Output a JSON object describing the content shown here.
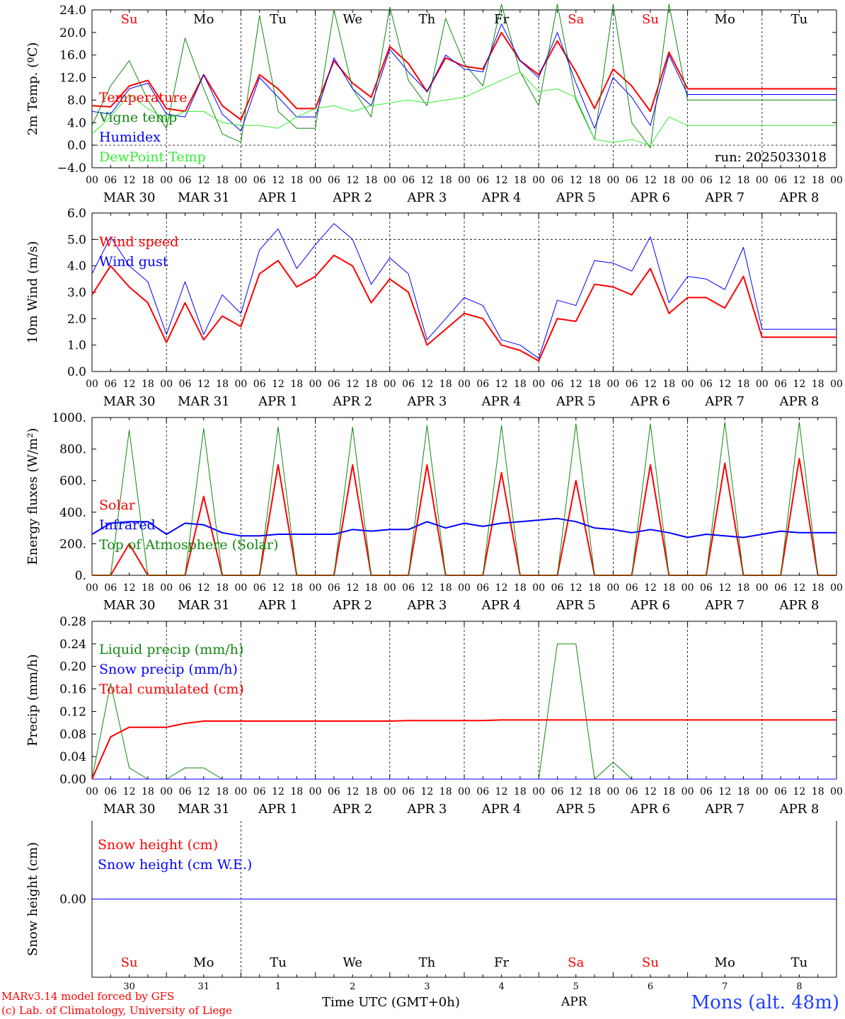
{
  "x_axis": {
    "hour_ticks": [
      "00",
      "06",
      "12",
      "18"
    ],
    "date_labels": [
      "MAR 30",
      "MAR 31",
      "APR  1",
      "APR  2",
      "APR  3",
      "APR  4",
      "APR  5",
      "APR  6",
      "APR  7",
      "APR  8"
    ],
    "weekdays": [
      "Su",
      "Mo",
      "Tu",
      "We",
      "Th",
      "Fr",
      "Sa",
      "Su",
      "Mo",
      "Tu"
    ],
    "weekday_colors": [
      "#ff0000",
      "#000000",
      "#000000",
      "#000000",
      "#000000",
      "#000000",
      "#ff0000",
      "#ff0000",
      "#000000",
      "#000000"
    ],
    "day_numbers": [
      "30",
      "31",
      "1",
      "2",
      "3",
      "4",
      "5",
      "6",
      "7",
      "8"
    ],
    "bottom_month": "APR",
    "bottom_title": "Time UTC (GMT+0h)"
  },
  "footer": {
    "credit_line1": "MARv3.14 model forced by GFS",
    "credit_line2": "(c) Lab. of Climatology, University of Liege",
    "station": "Mons (alt. 48m)"
  },
  "colors": {
    "red": "#ff0000",
    "dark_green": "#118811",
    "blue": "#0000ff",
    "light_green": "#33ee33"
  },
  "chart_data": [
    {
      "type": "line",
      "ylabel": "2m Temp. (ºC)",
      "ylim": [
        -4,
        24
      ],
      "yticks": [
        "24.0",
        "20.0",
        "16.0",
        "12.0",
        "8.0",
        "4.0",
        "0.0",
        "−4.0"
      ],
      "ytick_values": [
        24,
        20,
        16,
        12,
        8,
        4,
        0,
        -4
      ],
      "ref_line": 0,
      "annotation": "run: 2025033018",
      "x_hours": [
        0,
        6,
        12,
        18,
        24,
        30,
        36,
        42,
        48,
        54,
        60,
        66,
        72,
        78,
        84,
        90,
        96,
        102,
        108,
        114,
        120,
        126,
        132,
        138,
        144,
        150,
        156,
        162,
        168,
        174,
        180,
        186,
        192,
        198,
        204,
        210,
        216,
        222,
        228,
        234,
        240
      ],
      "series": [
        {
          "name": "Temperature",
          "color": "#ff0000",
          "width": 2,
          "values": [
            7.0,
            6.8,
            10.5,
            11.5,
            6.5,
            6.0,
            12.5,
            7.0,
            4.5,
            12.5,
            10.0,
            6.5,
            6.5,
            15.0,
            11.0,
            8.5,
            17.5,
            14.5,
            9.5,
            15.5,
            14.0,
            13.5,
            20.0,
            15.0,
            12.5,
            18.5,
            13.0,
            6.5,
            13.5,
            10.5,
            6.0,
            16.5,
            10.0,
            10.0,
            10.0,
            10.0,
            10.0,
            10.0,
            10.0,
            10.0,
            10.0
          ]
        },
        {
          "name": "Vigne temp",
          "color": "#118811",
          "width": 1,
          "values": [
            3.5,
            10.5,
            15.0,
            8.0,
            3.0,
            19.0,
            10.0,
            2.0,
            0.5,
            23.0,
            6.0,
            3.0,
            3.0,
            24.0,
            10.0,
            5.0,
            24.5,
            11.5,
            7.0,
            22.5,
            14.5,
            10.5,
            25.0,
            13.0,
            7.0,
            25.0,
            8.0,
            1.0,
            25.0,
            4.0,
            -0.5,
            25.0,
            8.0,
            8.0,
            8.0,
            8.0,
            8.0,
            8.0,
            8.0,
            8.0,
            8.0
          ]
        },
        {
          "name": "Humidex",
          "color": "#0000ff",
          "width": 1,
          "values": [
            6.0,
            5.5,
            10.0,
            11.0,
            5.5,
            5.0,
            12.5,
            5.5,
            2.5,
            12.0,
            8.5,
            5.0,
            5.0,
            15.5,
            10.0,
            7.0,
            17.0,
            13.0,
            9.5,
            16.0,
            13.5,
            13.0,
            21.5,
            15.0,
            12.0,
            20.0,
            11.0,
            3.0,
            12.0,
            8.5,
            3.5,
            16.0,
            9.0,
            9.0,
            9.0,
            9.0,
            9.0,
            9.0,
            9.0,
            9.0,
            9.0
          ]
        },
        {
          "name": "DewPoint Temp",
          "color": "#33ee33",
          "width": 1,
          "values": [
            2.0,
            5.0,
            9.0,
            6.5,
            4.5,
            6.0,
            6.0,
            4.0,
            3.5,
            3.5,
            3.0,
            5.0,
            6.5,
            7.0,
            6.0,
            7.0,
            7.5,
            8.0,
            7.5,
            8.0,
            8.5,
            10.0,
            11.5,
            13.0,
            9.5,
            10.0,
            8.5,
            1.0,
            0.5,
            1.0,
            0.0,
            5.0,
            3.5,
            3.5,
            3.5,
            3.5,
            3.5,
            3.5,
            3.5,
            3.5,
            3.5
          ]
        }
      ]
    },
    {
      "type": "line",
      "ylabel": "10m Wind (m/s)",
      "ylim": [
        0,
        6
      ],
      "yticks": [
        "6.0",
        "5.0",
        "4.0",
        "3.0",
        "2.0",
        "1.0",
        "0.0"
      ],
      "ytick_values": [
        6,
        5,
        4,
        3,
        2,
        1,
        0
      ],
      "ref_line": 5,
      "x_hours": [
        0,
        6,
        12,
        18,
        24,
        30,
        36,
        42,
        48,
        54,
        60,
        66,
        72,
        78,
        84,
        90,
        96,
        102,
        108,
        114,
        120,
        126,
        132,
        138,
        144,
        150,
        156,
        162,
        168,
        174,
        180,
        186,
        192,
        198,
        204,
        210,
        216,
        222,
        228,
        234,
        240
      ],
      "series": [
        {
          "name": "Wind speed",
          "color": "#ff0000",
          "width": 2,
          "values": [
            2.9,
            4.0,
            3.2,
            2.6,
            1.1,
            2.6,
            1.2,
            2.1,
            1.7,
            3.7,
            4.2,
            3.2,
            3.6,
            4.4,
            4.0,
            2.6,
            3.5,
            3.0,
            1.0,
            1.6,
            2.2,
            2.0,
            1.0,
            0.8,
            0.4,
            2.0,
            1.9,
            3.3,
            3.2,
            2.9,
            3.9,
            2.2,
            2.8,
            2.8,
            2.4,
            3.6,
            1.3,
            1.3,
            1.3,
            1.3,
            1.3
          ]
        },
        {
          "name": "Wind gust",
          "color": "#0000ff",
          "width": 1,
          "values": [
            3.7,
            5.1,
            4.0,
            3.4,
            1.4,
            3.4,
            1.4,
            2.9,
            2.2,
            4.6,
            5.4,
            3.9,
            4.8,
            5.6,
            5.0,
            3.3,
            4.3,
            3.7,
            1.2,
            2.0,
            2.8,
            2.5,
            1.2,
            1.0,
            0.5,
            2.7,
            2.5,
            4.2,
            4.1,
            3.8,
            5.1,
            2.6,
            3.6,
            3.5,
            3.1,
            4.7,
            1.6,
            1.6,
            1.6,
            1.6,
            1.6
          ]
        }
      ]
    },
    {
      "type": "line",
      "ylabel": "Energy fluxes (W/m²)",
      "ylim": [
        0,
        1000
      ],
      "yticks": [
        "1000.",
        "800.",
        "600.",
        "400.",
        "200.",
        "0."
      ],
      "ytick_values": [
        1000,
        800,
        600,
        400,
        200,
        0
      ],
      "x_hours": [
        0,
        6,
        12,
        18,
        24,
        30,
        36,
        42,
        48,
        54,
        60,
        66,
        72,
        78,
        84,
        90,
        96,
        102,
        108,
        114,
        120,
        126,
        132,
        138,
        144,
        150,
        156,
        162,
        168,
        174,
        180,
        186,
        192,
        198,
        204,
        210,
        216,
        222,
        228,
        234,
        240
      ],
      "series": [
        {
          "name": "Solar",
          "color": "#ff0000",
          "width": 2,
          "values": [
            0,
            0,
            200,
            0,
            0,
            0,
            500,
            0,
            0,
            0,
            700,
            0,
            0,
            0,
            700,
            0,
            0,
            0,
            700,
            0,
            0,
            0,
            650,
            0,
            0,
            0,
            600,
            0,
            0,
            0,
            700,
            0,
            0,
            0,
            710,
            0,
            0,
            0,
            740,
            0,
            0
          ]
        },
        {
          "name": "Infrared",
          "color": "#0000ff",
          "width": 2,
          "values": [
            260,
            330,
            340,
            340,
            260,
            330,
            320,
            270,
            250,
            250,
            260,
            260,
            260,
            260,
            290,
            280,
            290,
            290,
            340,
            300,
            330,
            310,
            330,
            340,
            350,
            360,
            340,
            300,
            290,
            270,
            290,
            270,
            240,
            260,
            250,
            240,
            260,
            280,
            270,
            270,
            270
          ]
        },
        {
          "name": "Top of Atmosphere (Solar)",
          "color": "#118811",
          "width": 1,
          "values": [
            0,
            0,
            920,
            0,
            0,
            0,
            930,
            0,
            0,
            0,
            940,
            0,
            0,
            0,
            940,
            0,
            0,
            0,
            950,
            0,
            0,
            0,
            950,
            0,
            0,
            0,
            960,
            0,
            0,
            0,
            960,
            0,
            0,
            0,
            970,
            0,
            0,
            0,
            970,
            0,
            0
          ]
        }
      ]
    },
    {
      "type": "line",
      "ylabel": "Precip (mm/h)",
      "ylim": [
        0,
        0.28
      ],
      "yticks": [
        "0.28",
        "0.24",
        "0.20",
        "0.16",
        "0.12",
        "0.08",
        "0.04",
        "0.00"
      ],
      "ytick_values": [
        0.28,
        0.24,
        0.2,
        0.16,
        0.12,
        0.08,
        0.04,
        0
      ],
      "x_hours": [
        0,
        6,
        12,
        18,
        24,
        30,
        36,
        42,
        48,
        54,
        60,
        66,
        72,
        78,
        84,
        90,
        96,
        102,
        108,
        114,
        120,
        126,
        132,
        138,
        144,
        150,
        156,
        162,
        168,
        174,
        180,
        186,
        192,
        198,
        204,
        210,
        216,
        222,
        228,
        234,
        240
      ],
      "series": [
        {
          "name": "Liquid precip (mm/h)",
          "color": "#118811",
          "width": 1,
          "values": [
            0,
            0.17,
            0.02,
            0,
            0,
            0.02,
            0.02,
            0,
            0,
            0,
            0,
            0,
            0,
            0,
            0,
            0,
            0,
            0,
            0,
            0,
            0,
            0,
            0,
            0,
            0,
            0.24,
            0.24,
            0,
            0.03,
            0,
            0,
            0,
            0,
            0,
            0,
            0,
            0,
            0,
            0,
            0,
            0
          ]
        },
        {
          "name": "Snow precip (mm/h)",
          "color": "#0000ff",
          "width": 1,
          "values": [
            0,
            0,
            0,
            0,
            0,
            0,
            0,
            0,
            0,
            0,
            0,
            0,
            0,
            0,
            0,
            0,
            0,
            0,
            0,
            0,
            0,
            0,
            0,
            0,
            0,
            0,
            0,
            0,
            0,
            0,
            0,
            0,
            0,
            0,
            0,
            0,
            0,
            0,
            0,
            0,
            0
          ]
        },
        {
          "name": "Total cumulated (cm)",
          "color": "#ff0000",
          "width": 2,
          "values": [
            0,
            0.075,
            0.092,
            0.092,
            0.092,
            0.099,
            0.103,
            0.103,
            0.103,
            0.103,
            0.103,
            0.103,
            0.103,
            0.103,
            0.103,
            0.103,
            0.103,
            0.104,
            0.104,
            0.104,
            0.104,
            0.104,
            0.105,
            0.105,
            0.105,
            0.105,
            0.105,
            0.105,
            0.105,
            0.105,
            0.105,
            0.105,
            0.105,
            0.105,
            0.105,
            0.105,
            0.105,
            0.105,
            0.105,
            0.105,
            0.105
          ]
        }
      ]
    },
    {
      "type": "line",
      "ylabel": "Snow height (cm)",
      "ylim": [
        -1,
        1
      ],
      "yticks": [
        "0.00"
      ],
      "ytick_values": [
        0
      ],
      "x_hours": [
        0,
        240
      ],
      "series": [
        {
          "name": "Snow height (cm)",
          "color": "#ff0000",
          "width": 1,
          "values": [
            0,
            0
          ]
        },
        {
          "name": "Snow height (cm W.E.)",
          "color": "#0000ff",
          "width": 1,
          "values": [
            0,
            0
          ]
        }
      ]
    }
  ]
}
